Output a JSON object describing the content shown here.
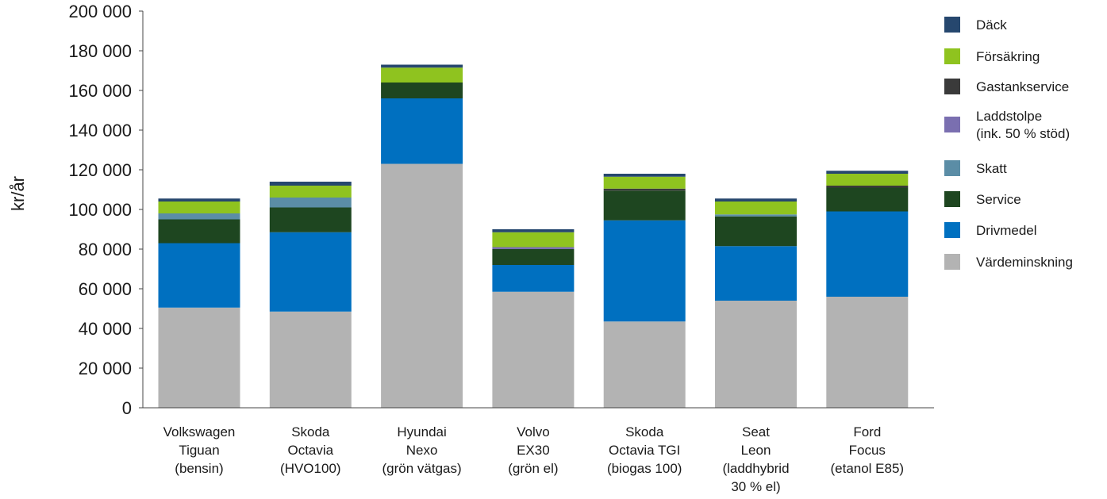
{
  "chart_data": {
    "type": "bar",
    "stacked": true,
    "title": "",
    "xlabel": "",
    "ylabel": "kr/år",
    "ylim": [
      0,
      200000
    ],
    "yticks": [
      0,
      20000,
      40000,
      60000,
      80000,
      100000,
      120000,
      140000,
      160000,
      180000,
      200000
    ],
    "ytick_labels": [
      "0",
      "20 000",
      "40 000",
      "60 000",
      "80 000",
      "100 000",
      "120 000",
      "140 000",
      "160 000",
      "180 000",
      "200 000"
    ],
    "grid": false,
    "legend_position": "right",
    "categories": [
      [
        "Volkswagen",
        "Tiguan",
        "(bensin)"
      ],
      [
        "Skoda",
        "Octavia",
        "(HVO100)"
      ],
      [
        "Hyundai",
        "Nexo",
        "(grön vätgas)"
      ],
      [
        "Volvo",
        "EX30",
        "(grön el)"
      ],
      [
        "Skoda",
        "Octavia TGI",
        "(biogas 100)"
      ],
      [
        "Seat",
        "Leon",
        "(laddhybrid",
        "30 % el)"
      ],
      [
        "Ford",
        "Focus",
        "(etanol E85)"
      ]
    ],
    "series": [
      {
        "name": "Värdeminskning",
        "color": "#b3b3b3",
        "values": [
          50500,
          48500,
          123000,
          58500,
          43500,
          54000,
          56000
        ]
      },
      {
        "name": "Drivmedel",
        "color": "#0070c0",
        "values": [
          32500,
          40000,
          33000,
          13500,
          51000,
          27500,
          43000
        ]
      },
      {
        "name": "Service",
        "color": "#1e4620",
        "values": [
          12000,
          12500,
          8000,
          8000,
          15000,
          15000,
          12000
        ]
      },
      {
        "name": "Skatt",
        "color": "#5b8da6",
        "values": [
          3000,
          5000,
          0,
          0,
          0,
          1000,
          0
        ]
      },
      {
        "name": "Laddstolpe (ink. 50 % stöd)",
        "color": "#7a6fb0",
        "values": [
          0,
          0,
          0,
          1000,
          0,
          0,
          0
        ]
      },
      {
        "name": "Gastankservice",
        "color": "#3a3a3a",
        "values": [
          0,
          0,
          0,
          0,
          1000,
          0,
          1000
        ]
      },
      {
        "name": "Försäkring",
        "color": "#8fc31f",
        "values": [
          6000,
          6000,
          7500,
          7500,
          6000,
          6500,
          6000
        ]
      },
      {
        "name": "Däck",
        "color": "#26476e",
        "values": [
          1500,
          2000,
          1500,
          1500,
          1500,
          1500,
          1500
        ]
      }
    ],
    "legend": [
      {
        "lines": [
          "Däck"
        ],
        "color": "#26476e"
      },
      {
        "lines": [
          "Försäkring"
        ],
        "color": "#8fc31f"
      },
      {
        "lines": [
          "Gastankservice"
        ],
        "color": "#3a3a3a"
      },
      {
        "lines": [
          "Laddstolpe",
          "(ink. 50 % stöd)"
        ],
        "color": "#7a6fb0"
      },
      {
        "lines": [
          "Skatt"
        ],
        "color": "#5b8da6"
      },
      {
        "lines": [
          "Service"
        ],
        "color": "#1e4620"
      },
      {
        "lines": [
          "Drivmedel"
        ],
        "color": "#0070c0"
      },
      {
        "lines": [
          "Värdeminskning"
        ],
        "color": "#b3b3b3"
      }
    ]
  }
}
